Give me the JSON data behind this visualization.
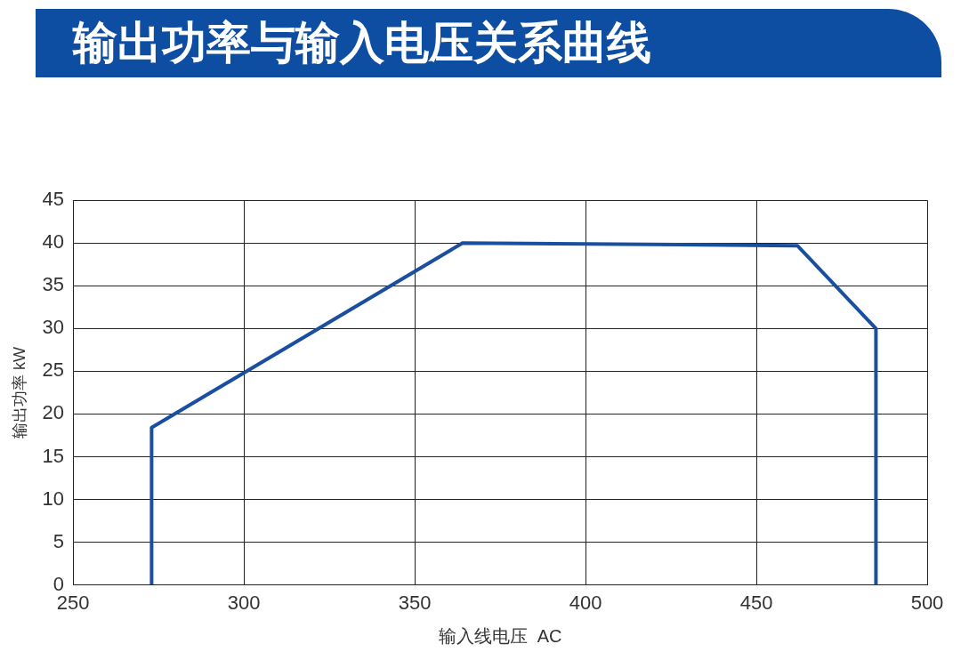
{
  "chart_data": {
    "type": "line",
    "title": "输出功率与输入电压关系曲线",
    "xlabel": "输入线电压  AC",
    "ylabel": "输出功率 kW",
    "x": [
      273,
      273,
      364,
      462,
      485,
      485
    ],
    "series": [
      {
        "color": "#1a4fa0",
        "values": [
          0,
          18.4,
          40,
          39.7,
          30,
          0
        ]
      }
    ],
    "xlim": [
      250,
      500
    ],
    "xticks": [
      250,
      300,
      350,
      400,
      450,
      500
    ],
    "ylim": [
      0,
      45
    ],
    "yticks": [
      0,
      5,
      10,
      15,
      20,
      25,
      30,
      35,
      40,
      45
    ],
    "grid": true,
    "legend": false,
    "marker": "none",
    "line_style": "solid"
  }
}
